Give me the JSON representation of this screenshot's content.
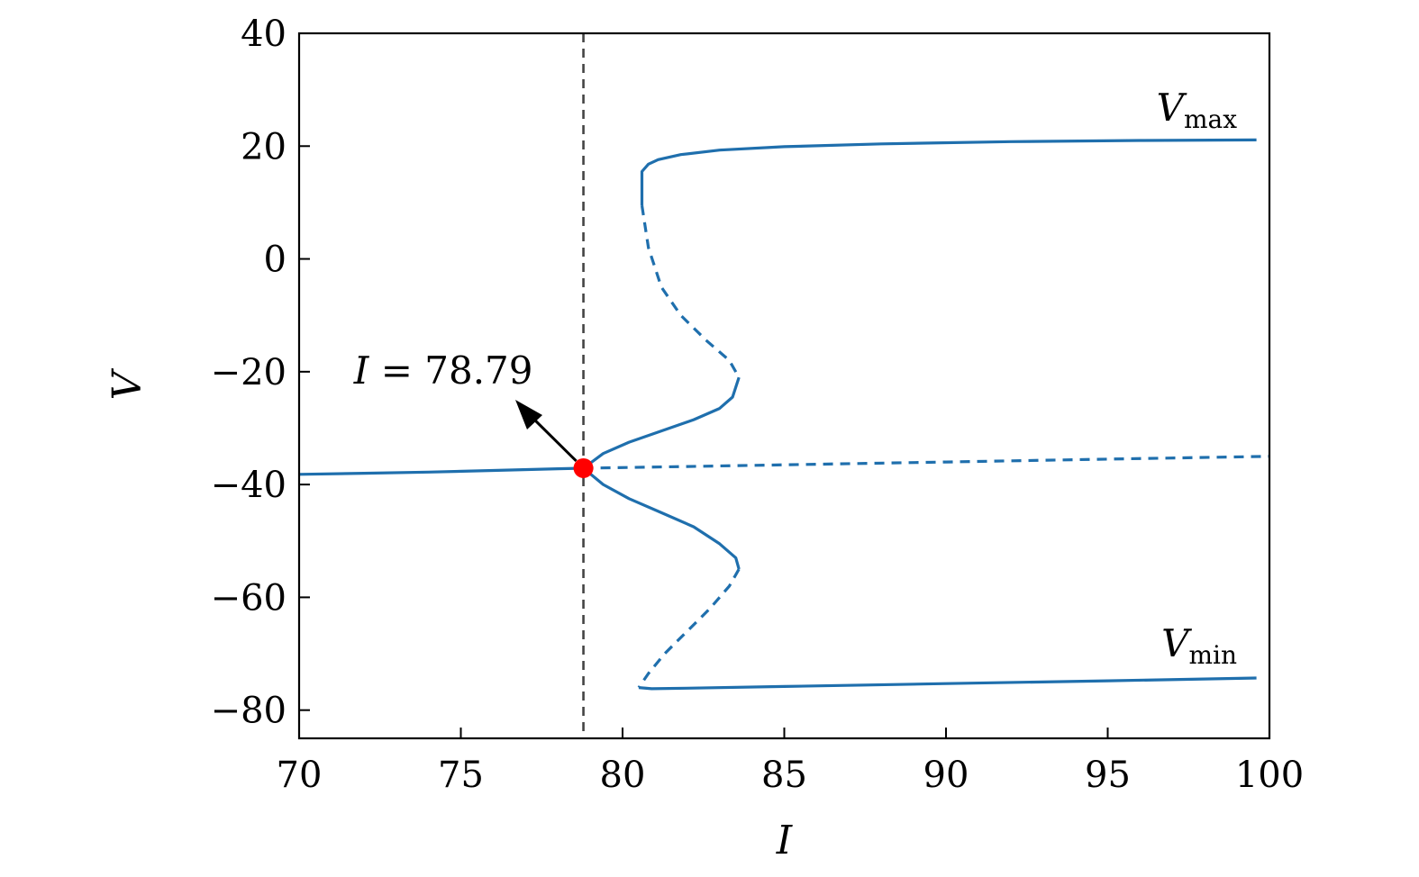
{
  "chart_data": {
    "type": "line",
    "title": "",
    "xlabel": "I",
    "ylabel": "V",
    "xlim": [
      70,
      100
    ],
    "ylim": [
      -85,
      40
    ],
    "xticks": [
      70,
      75,
      80,
      85,
      90,
      95,
      100
    ],
    "xtick_labels": [
      "70",
      "75",
      "80",
      "85",
      "90",
      "95",
      "100"
    ],
    "yticks": [
      40,
      20,
      0,
      -20,
      -40,
      -60,
      -80
    ],
    "ytick_labels": [
      "40",
      "20",
      "0",
      "−20",
      "−40",
      "−60",
      "−80"
    ],
    "grid": false,
    "color": "#1f6fad",
    "marker_color": "#ff0000",
    "vline": {
      "x": 78.79,
      "style": "dashed"
    },
    "bifurcation_point": {
      "x": 78.79,
      "y": -37.1
    },
    "annotation": {
      "var": "I",
      "eq": " = 78.79",
      "text_x": 70.3,
      "text_y": -20.5
    },
    "series": [
      {
        "name": "rest_stable",
        "style": "solid",
        "x": [
          70,
          72,
          74,
          76,
          78,
          78.79
        ],
        "y": [
          -38.2,
          -38.0,
          -37.8,
          -37.5,
          -37.2,
          -37.1
        ]
      },
      {
        "name": "rest_unstable",
        "style": "dashed",
        "x": [
          78.79,
          82,
          86,
          90,
          95,
          100
        ],
        "y": [
          -37.1,
          -36.8,
          -36.4,
          -36.0,
          -35.5,
          -35.0
        ]
      },
      {
        "name": "max_upper_stable",
        "style": "solid",
        "x": [
          80.6,
          80.6,
          80.8,
          81.1,
          81.8,
          83,
          85,
          88,
          92,
          96,
          99.6
        ],
        "y": [
          9.5,
          15.5,
          16.8,
          17.6,
          18.5,
          19.3,
          19.9,
          20.4,
          20.8,
          21.0,
          21.1
        ]
      },
      {
        "name": "max_unstable",
        "style": "dashed",
        "x": [
          80.6,
          80.8,
          81.2,
          81.8,
          82.6,
          83.3,
          83.6
        ],
        "y": [
          9.5,
          2,
          -5,
          -10,
          -14.5,
          -18,
          -21
        ]
      },
      {
        "name": "max_lower_stable",
        "style": "solid",
        "x": [
          83.6,
          83.4,
          83.0,
          82.2,
          81.2,
          80.2,
          79.4,
          78.79
        ],
        "y": [
          -21,
          -24.5,
          -26.5,
          -28.5,
          -30.5,
          -32.5,
          -34.5,
          -37.1
        ]
      },
      {
        "name": "min_upper_stable",
        "style": "solid",
        "x": [
          78.79,
          79.4,
          80.2,
          81.2,
          82.2,
          83.0,
          83.5,
          83.6
        ],
        "y": [
          -37.1,
          -40.0,
          -42.5,
          -45.0,
          -47.5,
          -50.5,
          -53,
          -55
        ]
      },
      {
        "name": "min_unstable",
        "style": "dashed",
        "x": [
          83.6,
          83.3,
          82.7,
          82.0,
          81.3,
          80.8,
          80.5
        ],
        "y": [
          -55,
          -58,
          -62,
          -66,
          -70,
          -73.5,
          -76
        ]
      },
      {
        "name": "min_lower_stable",
        "style": "solid",
        "x": [
          80.5,
          80.9,
          82,
          85,
          90,
          95,
          99.6
        ],
        "y": [
          -76,
          -76.2,
          -76.1,
          -75.8,
          -75.3,
          -74.8,
          -74.3
        ]
      }
    ],
    "labels": [
      {
        "main": "V",
        "sub": "max",
        "x": 99.5,
        "y": 24.5
      },
      {
        "main": "V",
        "sub": "min",
        "x": 99.5,
        "y": -70.5
      }
    ]
  }
}
